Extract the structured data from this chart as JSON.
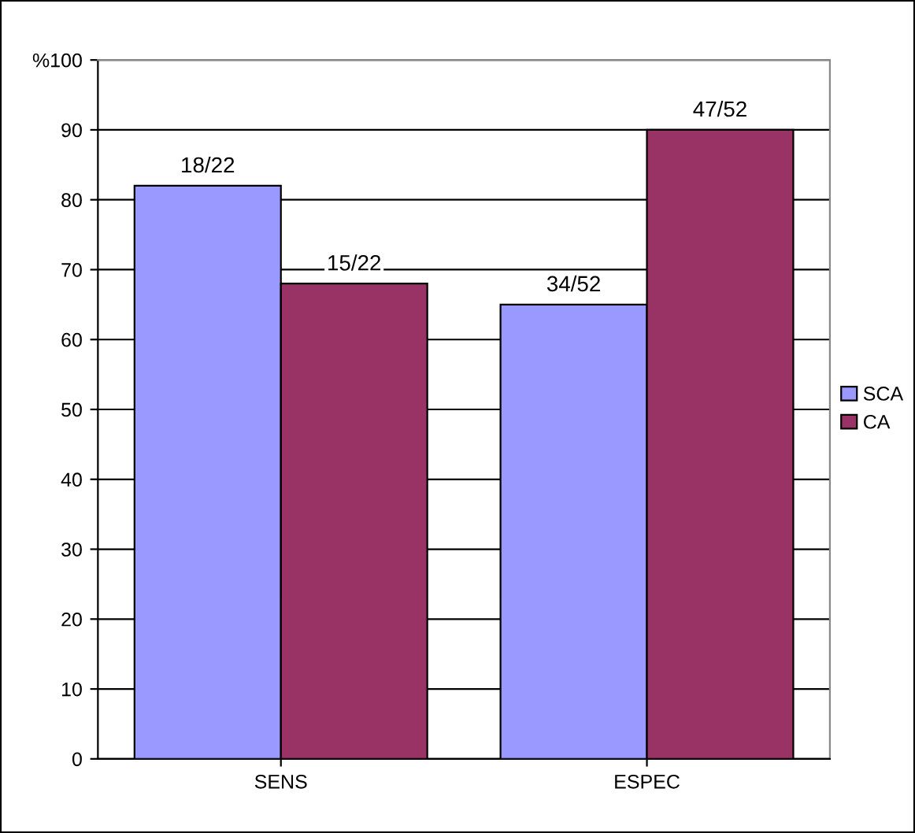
{
  "chart_data": {
    "type": "bar",
    "categories": [
      "SENS",
      "ESPEC"
    ],
    "series": [
      {
        "name": "SCA",
        "color": "#9999ff",
        "values": [
          82,
          65
        ],
        "value_labels": [
          "18/22",
          "34/52"
        ]
      },
      {
        "name": "CA",
        "color": "#993366",
        "values": [
          68,
          90
        ],
        "value_labels": [
          "15/22",
          "47/52"
        ]
      }
    ],
    "ylim": [
      0,
      100
    ],
    "yticks": [
      0,
      10,
      20,
      30,
      40,
      50,
      60,
      70,
      80,
      90,
      {
        "value": 100,
        "label": "%100"
      }
    ],
    "grid": "y",
    "legend": "right"
  }
}
